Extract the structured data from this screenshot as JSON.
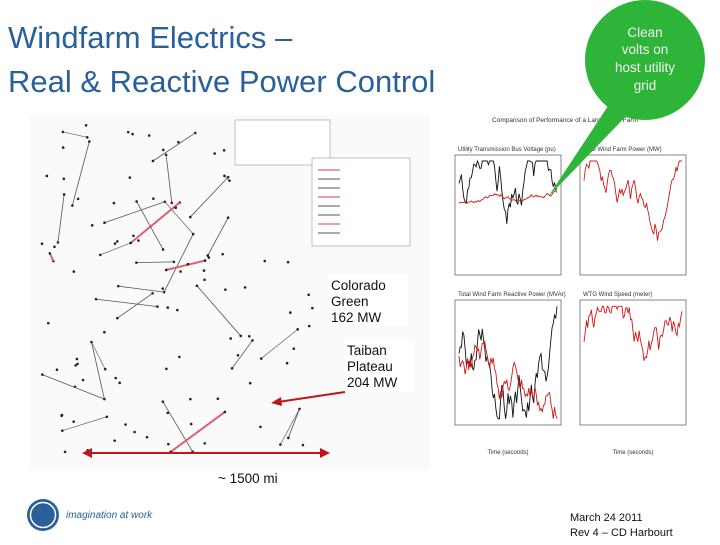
{
  "header": {
    "title_lines": [
      "Windfarm Electrics –",
      "Real & Reactive Power Control"
    ]
  },
  "callout": {
    "lines": [
      "Clean",
      "volts on",
      "host utility",
      "grid"
    ]
  },
  "annotations": {
    "colorado": [
      "Colorado",
      "Green",
      "162 MW"
    ],
    "taiban": [
      "Taiban",
      "Plateau",
      "204 MW"
    ],
    "distance": "~ 1500 mi"
  },
  "figure": {
    "title": "Comparison of Performance of a Large Wind Farm",
    "panel_titles": [
      "Utility Transmission Bus Voltage (pu)",
      "Total Wind Farm Power (MW)",
      "Total Wind Farm Reactive Power (MVAr)",
      "WTG Wind Speed (meter)"
    ],
    "x_label": "Time (seconds)"
  },
  "footer": {
    "tagline": "imagination at work",
    "date": "March 24 2011",
    "revision": "Rev 4 – CD Harbourt"
  }
}
